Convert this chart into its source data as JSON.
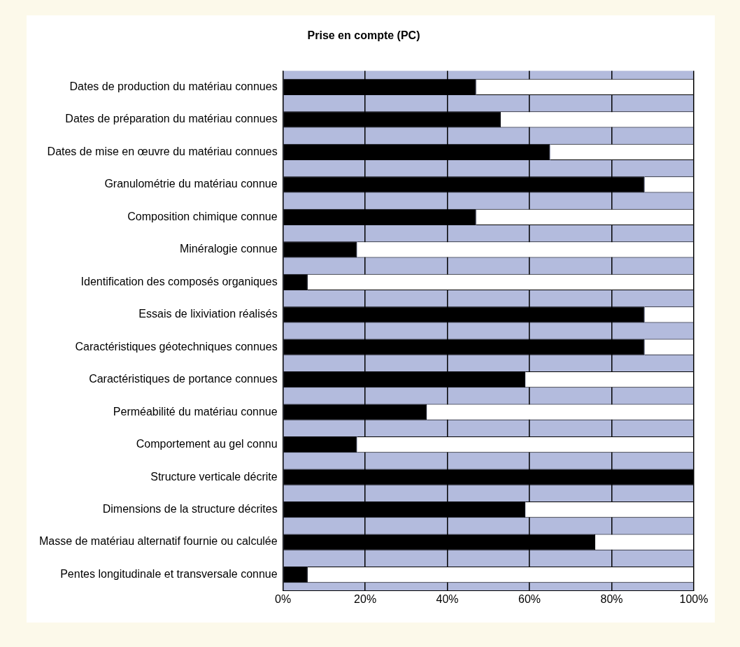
{
  "chart_data": {
    "type": "bar",
    "title": "Prise en compte (PC)",
    "orientation": "horizontal",
    "stacked": true,
    "categories": [
      "Dates de production du matériau connues",
      "Dates de préparation du matériau connues",
      "Dates de mise en œuvre du matériau connues",
      "Granulométrie du matériau connue",
      "Composition chimique connue",
      "Minéralogie connue",
      "Identification des composés organiques",
      "Essais de lixiviation réalisés",
      "Caractéristiques géotechniques connues",
      "Caractéristiques de portance connues",
      "Perméabilité du matériau connue",
      "Comportement au gel connu",
      "Structure verticale décrite",
      "Dimensions de la structure décrites",
      "Masse de matériau alternatif fournie ou calculée",
      "Pentes longitudinale et transversale connue"
    ],
    "series": [
      {
        "color": "#000000",
        "values": [
          47,
          53,
          65,
          88,
          47,
          18,
          6,
          88,
          88,
          59,
          35,
          18,
          100,
          59,
          76,
          6
        ]
      },
      {
        "color": "#ffffff",
        "values": [
          53,
          47,
          35,
          12,
          53,
          82,
          94,
          12,
          12,
          41,
          65,
          82,
          0,
          41,
          24,
          94
        ]
      }
    ],
    "xlim": [
      0,
      100
    ],
    "xticks": [
      {
        "value": 0,
        "label": "0%"
      },
      {
        "value": 20,
        "label": "20%"
      },
      {
        "value": 40,
        "label": "40%"
      },
      {
        "value": 60,
        "label": "60%"
      },
      {
        "value": 80,
        "label": "80%"
      },
      {
        "value": 100,
        "label": "100%"
      }
    ],
    "grid": "x",
    "legend": false
  }
}
